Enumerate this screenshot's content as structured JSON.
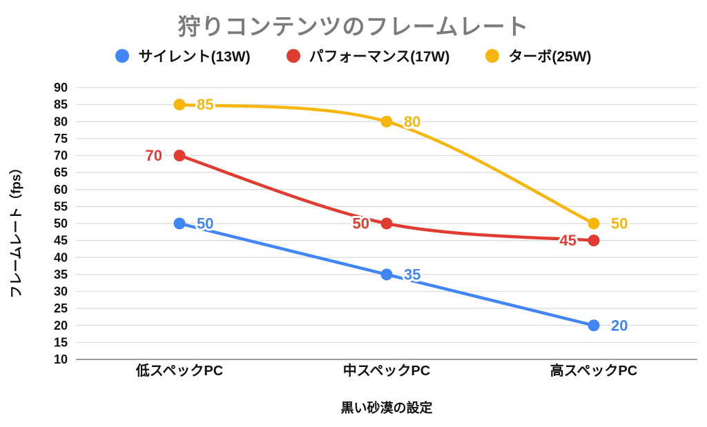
{
  "title": "狩りコンテンツのフレームレート",
  "legend": {
    "items": [
      {
        "label": "サイレント(13W)",
        "color": "#4285F4"
      },
      {
        "label": "パフォーマンス(17W)",
        "color": "#E03C31"
      },
      {
        "label": "ターボ(25W)",
        "color": "#F5B60D"
      }
    ]
  },
  "chart_data": {
    "type": "line",
    "smooth": true,
    "title": "狩りコンテンツのフレームレート",
    "xlabel": "黒い砂漠の設定",
    "ylabel": "フレームレート（fps）",
    "categories": [
      "低スペックPC",
      "中スペックPC",
      "高スペックPC"
    ],
    "series": [
      {
        "name": "サイレント(13W)",
        "color": "#4285F4",
        "values": [
          50,
          35,
          20
        ],
        "label_side": [
          "right",
          "right",
          "right"
        ]
      },
      {
        "name": "パフォーマンス(17W)",
        "color": "#E03C31",
        "values": [
          70,
          50,
          45
        ],
        "label_side": [
          "left",
          "left",
          "left"
        ]
      },
      {
        "name": "ターボ(25W)",
        "color": "#F5B60D",
        "values": [
          85,
          80,
          50
        ],
        "label_side": [
          "right",
          "right",
          "right"
        ]
      }
    ],
    "ylim": [
      10,
      90
    ],
    "ytick_step": 5,
    "grid": true,
    "legend_position": "top",
    "background": "#FFFFFF",
    "gridline_color": "#DADADA",
    "axisline_color": "#9E9E9E",
    "text_color": "#111111",
    "title_color": "#7A7A7A"
  }
}
